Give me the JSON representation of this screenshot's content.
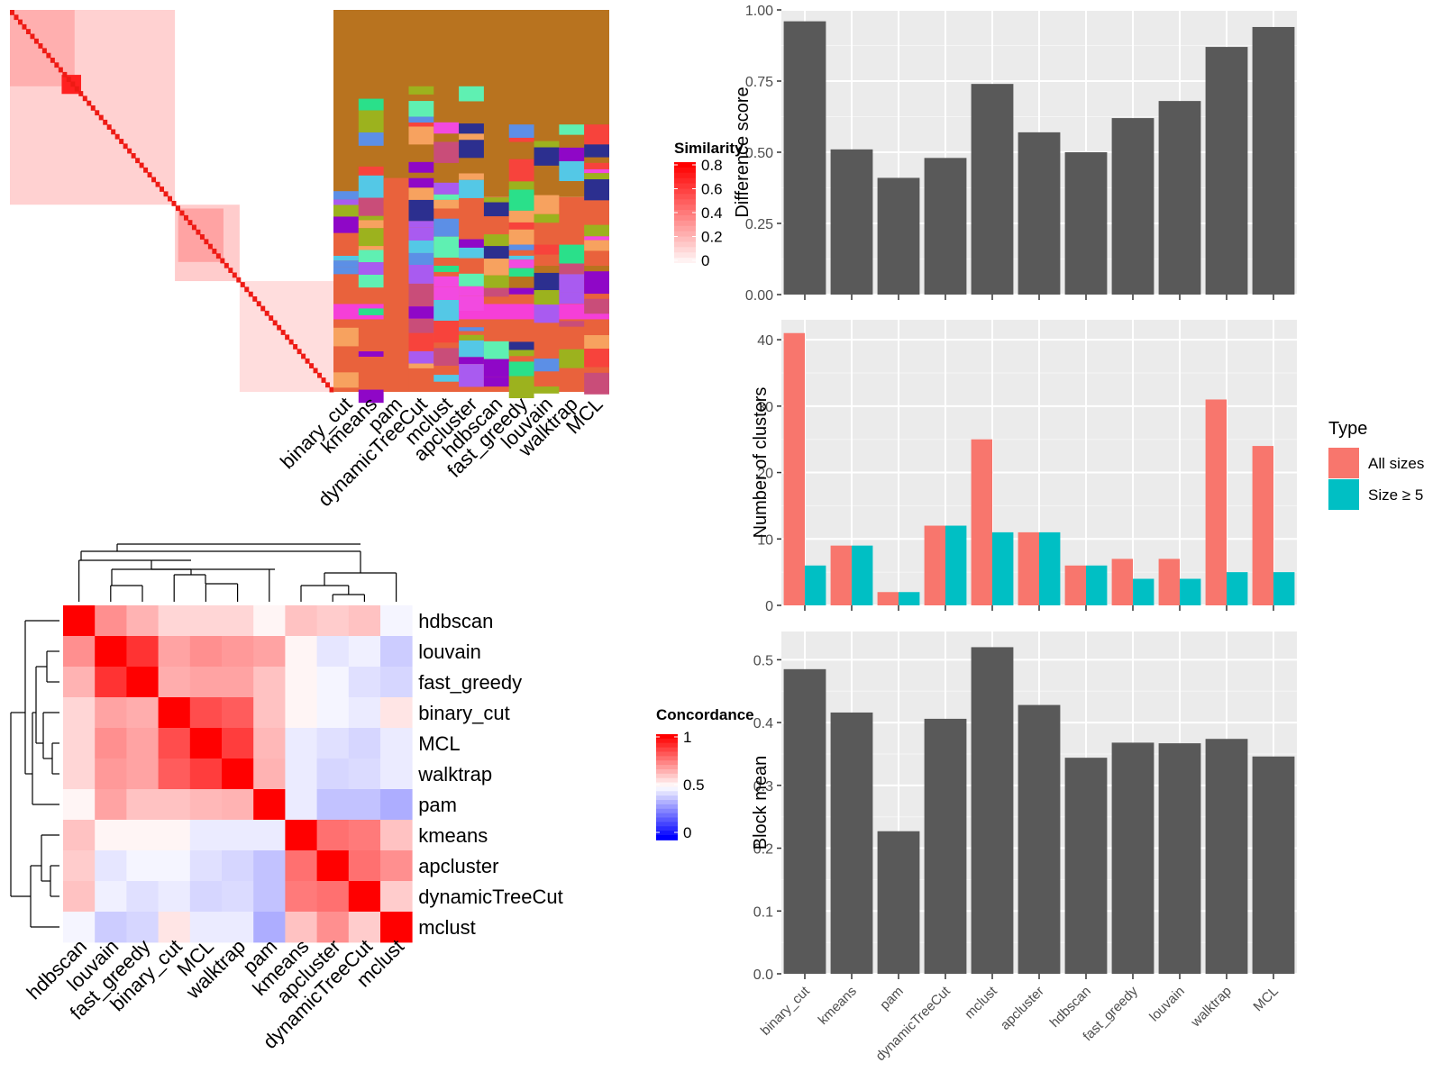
{
  "methods": [
    "binary_cut",
    "kmeans",
    "pam",
    "dynamicTreeCut",
    "mclust",
    "apcluster",
    "hdbscan",
    "fast_greedy",
    "louvain",
    "walktrap",
    "MCL"
  ],
  "colors": {
    "bar": "#595959",
    "panel_bg": "#ebebeb",
    "all_sizes": "#f8766d",
    "size_ge5": "#00bfc4",
    "heat_high": "#ff0000",
    "heat_mid": "#ffffff",
    "heat_low": "#0000ff"
  },
  "similarity_legend": {
    "title": "Similarity",
    "ticks": [
      "0.8",
      "0.6",
      "0.4",
      "0.2",
      "0"
    ]
  },
  "concordance_legend": {
    "title": "Concordance",
    "ticks": [
      "1",
      "0.5",
      "0"
    ]
  },
  "type_legend": {
    "title": "Type",
    "items": [
      "All sizes",
      "Size ≥ 5"
    ]
  },
  "chart_data": [
    {
      "type": "heatmap",
      "title": "Similarity",
      "description_values": "similarity matrix of terms with cluster assignment columns per method",
      "columns": [
        "binary_cut",
        "kmeans",
        "pam",
        "dynamicTreeCut",
        "mclust",
        "apcluster",
        "hdbscan",
        "fast_greedy",
        "louvain",
        "walktrap",
        "MCL"
      ],
      "legend_range": [
        0,
        0.8
      ]
    },
    {
      "type": "heatmap",
      "title": "Concordance",
      "order": [
        "hdbscan",
        "louvain",
        "fast_greedy",
        "binary_cut",
        "MCL",
        "walktrap",
        "pam",
        "kmeans",
        "apcluster",
        "dynamicTreeCut",
        "mclust"
      ],
      "values": [
        [
          1.0,
          0.72,
          0.65,
          0.58,
          0.58,
          0.58,
          0.52,
          0.62,
          0.6,
          0.62,
          0.48
        ],
        [
          0.72,
          1.0,
          0.9,
          0.68,
          0.72,
          0.7,
          0.68,
          0.52,
          0.45,
          0.47,
          0.4
        ],
        [
          0.65,
          0.9,
          1.0,
          0.66,
          0.68,
          0.68,
          0.62,
          0.52,
          0.48,
          0.44,
          0.42
        ],
        [
          0.58,
          0.68,
          0.66,
          1.0,
          0.85,
          0.82,
          0.62,
          0.52,
          0.48,
          0.46,
          0.55
        ],
        [
          0.58,
          0.72,
          0.68,
          0.85,
          1.0,
          0.88,
          0.64,
          0.46,
          0.44,
          0.42,
          0.46
        ],
        [
          0.58,
          0.7,
          0.68,
          0.82,
          0.88,
          1.0,
          0.65,
          0.46,
          0.42,
          0.43,
          0.46
        ],
        [
          0.52,
          0.68,
          0.62,
          0.62,
          0.64,
          0.65,
          1.0,
          0.46,
          0.38,
          0.38,
          0.34
        ],
        [
          0.62,
          0.52,
          0.52,
          0.52,
          0.46,
          0.46,
          0.46,
          1.0,
          0.78,
          0.76,
          0.62
        ],
        [
          0.6,
          0.45,
          0.48,
          0.48,
          0.44,
          0.42,
          0.38,
          0.78,
          1.0,
          0.78,
          0.72
        ],
        [
          0.62,
          0.47,
          0.44,
          0.46,
          0.42,
          0.43,
          0.38,
          0.76,
          0.78,
          1.0,
          0.6
        ],
        [
          0.48,
          0.4,
          0.42,
          0.55,
          0.46,
          0.46,
          0.34,
          0.62,
          0.72,
          0.6,
          1.0
        ]
      ],
      "legend_range": [
        0,
        1
      ]
    },
    {
      "type": "bar",
      "ylabel": "Difference score",
      "categories": [
        "binary_cut",
        "kmeans",
        "pam",
        "dynamicTreeCut",
        "mclust",
        "apcluster",
        "hdbscan",
        "fast_greedy",
        "louvain",
        "walktrap",
        "MCL"
      ],
      "values": [
        0.96,
        0.51,
        0.41,
        0.48,
        0.74,
        0.57,
        0.5,
        0.62,
        0.68,
        0.87,
        0.94
      ],
      "ylim": [
        0,
        1
      ],
      "yticks": [
        "0.00",
        "0.25",
        "0.50",
        "0.75",
        "1.00"
      ],
      "ytick_values": [
        0,
        0.25,
        0.5,
        0.75,
        1.0
      ]
    },
    {
      "type": "bar",
      "ylabel": "Number of clusters",
      "categories": [
        "binary_cut",
        "kmeans",
        "pam",
        "dynamicTreeCut",
        "mclust",
        "apcluster",
        "hdbscan",
        "fast_greedy",
        "louvain",
        "walktrap",
        "MCL"
      ],
      "series": [
        {
          "name": "All sizes",
          "values": [
            41,
            9,
            2,
            12,
            25,
            11,
            6,
            7,
            7,
            31,
            24
          ]
        },
        {
          "name": "Size ≥ 5",
          "values": [
            6,
            9,
            2,
            12,
            11,
            11,
            6,
            4,
            4,
            5,
            5
          ]
        }
      ],
      "ylim": [
        0,
        43
      ],
      "yticks": [
        "0",
        "10",
        "20",
        "30",
        "40"
      ],
      "ytick_values": [
        0,
        10,
        20,
        30,
        40
      ],
      "legend": "right"
    },
    {
      "type": "bar",
      "ylabel": "Block mean",
      "categories": [
        "binary_cut",
        "kmeans",
        "pam",
        "dynamicTreeCut",
        "mclust",
        "apcluster",
        "hdbscan",
        "fast_greedy",
        "louvain",
        "walktrap",
        "MCL"
      ],
      "values": [
        0.485,
        0.416,
        0.227,
        0.406,
        0.52,
        0.428,
        0.344,
        0.368,
        0.367,
        0.374,
        0.346
      ],
      "ylim": [
        0,
        0.545
      ],
      "yticks": [
        "0.0",
        "0.1",
        "0.2",
        "0.3",
        "0.4",
        "0.5"
      ],
      "ytick_values": [
        0,
        0.1,
        0.2,
        0.3,
        0.4,
        0.5
      ]
    }
  ]
}
